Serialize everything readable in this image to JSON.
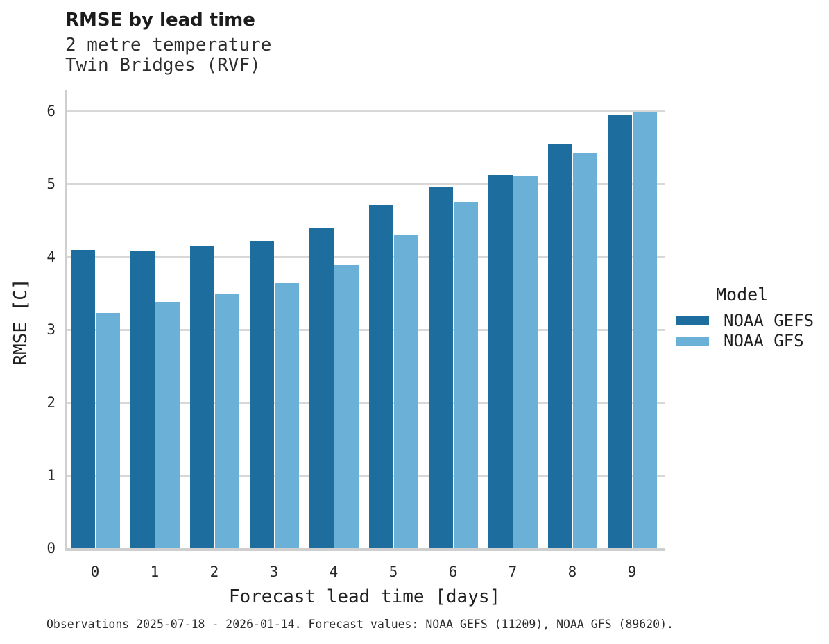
{
  "header": {
    "title": "RMSE by lead time",
    "subtitle_lines": [
      "2 metre temperature",
      "Twin Bridges (RVF)"
    ]
  },
  "legend": {
    "title": "Model",
    "items": [
      {
        "label": "NOAA GEFS",
        "color": "#1D6D9E"
      },
      {
        "label": "NOAA GFS",
        "color": "#6BB1D7"
      }
    ]
  },
  "caption": "Observations 2025-07-18 - 2026-01-14. Forecast values: NOAA GEFS (11209), NOAA GFS (89620).",
  "chart_data": {
    "type": "bar",
    "title": "RMSE by lead time",
    "subtitle": "2 metre temperature — Twin Bridges (RVF)",
    "xlabel": "Forecast lead time [days]",
    "ylabel": "RMSE [C]",
    "categories": [
      "0",
      "1",
      "2",
      "3",
      "4",
      "5",
      "6",
      "7",
      "8",
      "9"
    ],
    "series": [
      {
        "name": "NOAA GEFS",
        "color": "#1D6D9E",
        "values": [
          4.1,
          4.08,
          4.14,
          4.22,
          4.4,
          4.7,
          4.95,
          5.12,
          5.54,
          5.94
        ]
      },
      {
        "name": "NOAA GFS",
        "color": "#6BB1D7",
        "values": [
          3.23,
          3.38,
          3.49,
          3.64,
          3.89,
          4.3,
          4.75,
          5.1,
          5.42,
          5.99
        ]
      }
    ],
    "ylim": [
      0,
      6
    ],
    "yticks": [
      0,
      1,
      2,
      3,
      4,
      5,
      6
    ],
    "grid": "horizontal",
    "legend_position": "right",
    "legend_title": "Model"
  }
}
